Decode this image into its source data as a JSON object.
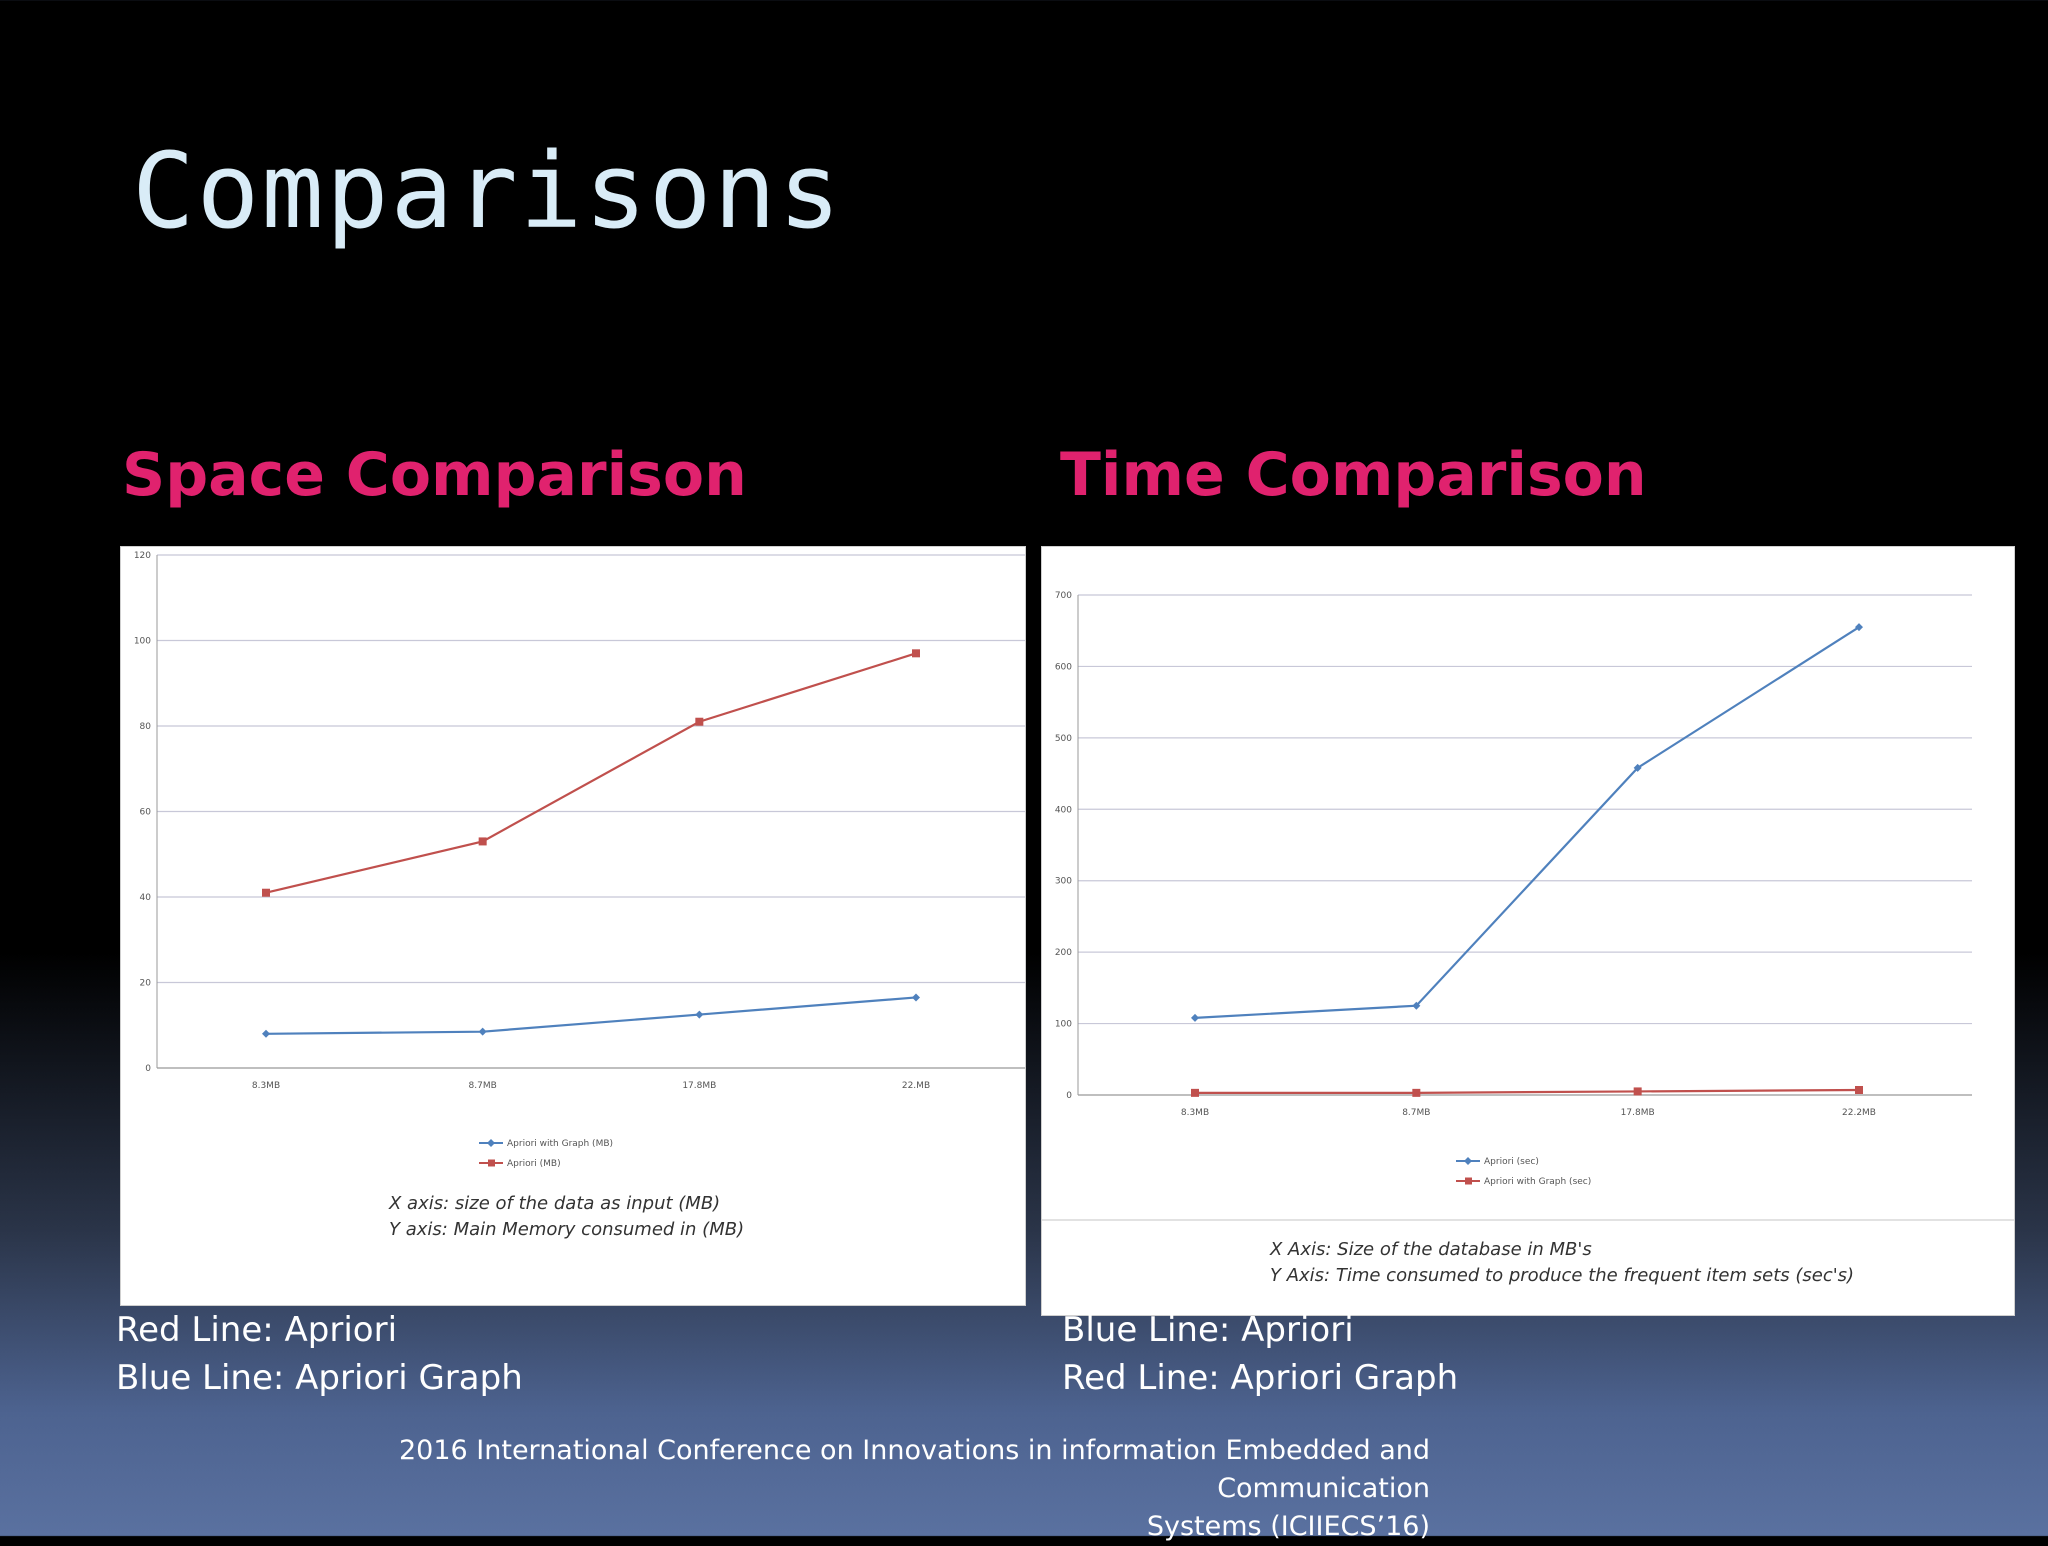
{
  "slide": {
    "title": "Comparisons",
    "space_heading": "Space Comparison",
    "time_heading": "Time Comparison",
    "space_x_note": "X axis: size of the data as input (MB)",
    "space_y_note": "Y axis: Main Memory consumed in (MB)",
    "time_x_note": "X Axis: Size of the database in MB's",
    "time_y_note": "Y Axis: Time consumed to produce the frequent item sets (sec's)",
    "space_caption_1": "Red Line: Apriori",
    "space_caption_2": "Blue Line: Apriori Graph",
    "time_caption_1": "Blue Line: Apriori",
    "time_caption_2": "Red Line: Apriori Graph",
    "footer_1": "2016 International Conference on Innovations in information Embedded and Communication",
    "footer_2": "Systems (ICIIECS’16)"
  },
  "colors": {
    "red": "#c0504d",
    "blue": "#4f81bd",
    "grid": "#c8c8d8",
    "tick": "#555555"
  },
  "chart_data": [
    {
      "type": "line",
      "id": "space",
      "categories": [
        "8.3MB",
        "8.7MB",
        "17.8MB",
        "22.MB"
      ],
      "yticks": [
        0,
        20,
        40,
        60,
        80,
        100,
        120
      ],
      "ylim": [
        0,
        120
      ],
      "series": [
        {
          "name": "Apriori with Graph (MB)",
          "color": "blue",
          "marker": "diamond",
          "values": [
            8,
            8.5,
            12.5,
            16.5
          ]
        },
        {
          "name": "Apriori (MB)",
          "color": "red",
          "marker": "square",
          "values": [
            41,
            53,
            81,
            97
          ]
        }
      ]
    },
    {
      "type": "line",
      "id": "time",
      "categories": [
        "8.3MB",
        "8.7MB",
        "17.8MB",
        "22.2MB"
      ],
      "yticks": [
        0,
        100,
        200,
        300,
        400,
        500,
        600,
        700
      ],
      "ylim": [
        0,
        700
      ],
      "series": [
        {
          "name": "Apriori (sec)",
          "color": "blue",
          "marker": "diamond",
          "values": [
            108,
            125,
            458,
            655
          ]
        },
        {
          "name": "Apriori with Graph (sec)",
          "color": "red",
          "marker": "square",
          "values": [
            3,
            3,
            5,
            7
          ]
        }
      ]
    }
  ]
}
